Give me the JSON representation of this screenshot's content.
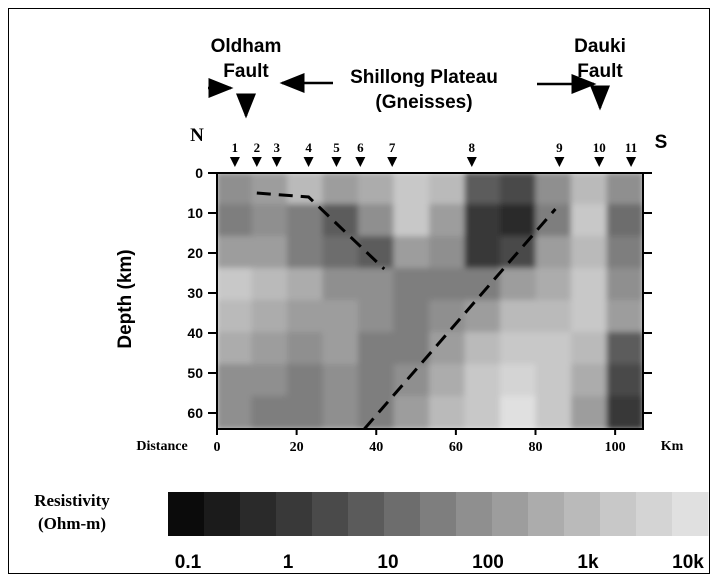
{
  "header": {
    "oldham_line1": "Oldham",
    "oldham_line2": "Fault",
    "shillong_line1": "Shillong Plateau",
    "shillong_line2": "(Gneisses)",
    "dauki_line1": "Dauki",
    "dauki_line2": "Fault",
    "north": "N",
    "south": "S"
  },
  "chart_data": {
    "type": "heatmap",
    "title": "",
    "xlabel": "Distance",
    "xunit": "Km",
    "ylabel": "Depth (km)",
    "xlim": [
      0,
      107
    ],
    "ylim": [
      0,
      64
    ],
    "y_inverted": true,
    "xticks": [
      0,
      20,
      40,
      60,
      80,
      100
    ],
    "yticks": [
      0,
      10,
      20,
      30,
      40,
      50,
      60
    ],
    "stations": [
      {
        "label": "1",
        "x": 4.5
      },
      {
        "label": "2",
        "x": 10
      },
      {
        "label": "3",
        "x": 15
      },
      {
        "label": "4",
        "x": 23
      },
      {
        "label": "5",
        "x": 30
      },
      {
        "label": "6",
        "x": 36
      },
      {
        "label": "7",
        "x": 44
      },
      {
        "label": "8",
        "x": 64
      },
      {
        "label": "9",
        "x": 86
      },
      {
        "label": "10",
        "x": 96
      },
      {
        "label": "11",
        "x": 104
      }
    ],
    "faults": [
      {
        "name": "shallow",
        "points": [
          [
            10,
            5
          ],
          [
            23,
            6
          ],
          [
            42,
            24
          ]
        ]
      },
      {
        "name": "deep",
        "points": [
          [
            37,
            64
          ],
          [
            85,
            9
          ]
        ]
      }
    ],
    "colorbar": {
      "label_line1": "Resistivity",
      "label_line2": "(Ohm-m)",
      "tick_labels": [
        "0.1",
        "1",
        "10",
        "100",
        "1k",
        "10k"
      ],
      "colors": [
        "#0b0b0b",
        "#1b1b1b",
        "#2a2a2a",
        "#393939",
        "#4a4a4a",
        "#5b5b5b",
        "#6d6d6d",
        "#7e7e7e",
        "#8f8f8f",
        "#9d9d9d",
        "#acacac",
        "#bababa",
        "#c8c8c8",
        "#d4d4d4",
        "#e0e0e0"
      ]
    },
    "resistivity_grid": {
      "cols": 12,
      "rows": 8,
      "levels": [
        [
          8,
          9,
          11,
          9,
          10,
          12,
          11,
          5,
          4,
          8,
          11,
          8
        ],
        [
          7,
          8,
          7,
          5,
          8,
          12,
          9,
          3,
          2,
          7,
          12,
          6
        ],
        [
          9,
          9,
          7,
          6,
          5,
          9,
          8,
          3,
          4,
          9,
          11,
          7
        ],
        [
          12,
          11,
          10,
          8,
          8,
          7,
          7,
          7,
          9,
          10,
          12,
          8
        ],
        [
          11,
          10,
          9,
          9,
          8,
          7,
          8,
          9,
          11,
          11,
          12,
          9
        ],
        [
          10,
          9,
          8,
          9,
          7,
          7,
          9,
          11,
          12,
          12,
          11,
          5
        ],
        [
          8,
          8,
          7,
          8,
          7,
          8,
          10,
          12,
          13,
          12,
          10,
          4
        ],
        [
          8,
          7,
          7,
          8,
          7,
          9,
          11,
          12,
          14,
          12,
          9,
          3
        ]
      ]
    }
  }
}
